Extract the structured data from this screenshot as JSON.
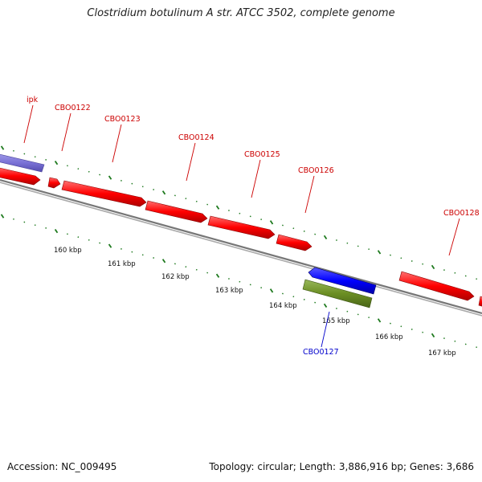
{
  "title": "Clostridium botulinum A str. ATCC 3502, complete genome",
  "footer": {
    "accession": "Accession: NC_009495",
    "summary": "Topology: circular; Length: 3,886,916 bp; Genes: 3,686"
  },
  "colors": {
    "forward_cds": "#ff0000",
    "reverse_cds": "#0000ff",
    "forward_other": "#7a72d6",
    "reverse_other": "#6b8e23",
    "forward_label": "#cc0000",
    "reverse_label": "#0000cc",
    "backbone": "#888888",
    "ticks": "#1f7a1f"
  },
  "scale": {
    "tick_labels": [
      "160 kbp",
      "161 kbp",
      "162 kbp",
      "163 kbp",
      "164 kbp",
      "165 kbp",
      "166 kbp",
      "167 kbp"
    ]
  },
  "genes": [
    {
      "label": "ipk",
      "strand": "forward"
    },
    {
      "label": "CBO0122",
      "strand": "forward"
    },
    {
      "label": "CBO0123",
      "strand": "forward"
    },
    {
      "label": "CBO0124",
      "strand": "forward"
    },
    {
      "label": "CBO0125",
      "strand": "forward"
    },
    {
      "label": "CBO0126",
      "strand": "forward"
    },
    {
      "label": "CBO0128",
      "strand": "forward"
    },
    {
      "label": "CBO0127",
      "strand": "reverse"
    }
  ]
}
